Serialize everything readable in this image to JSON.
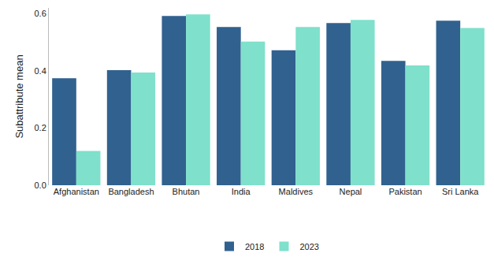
{
  "chart_data": {
    "type": "bar",
    "y_label": "Subattribute mean",
    "categories": [
      "Afghanistan",
      "Bangladesh",
      "Bhutan",
      "India",
      "Maldives",
      "Nepal",
      "Pakistan",
      "Sri Lanka"
    ],
    "series": [
      {
        "name": "2018",
        "color": "#31618f",
        "values": [
          0.374,
          0.402,
          0.592,
          0.553,
          0.472,
          0.567,
          0.435,
          0.575
        ]
      },
      {
        "name": "2023",
        "color": "#7fe0cb",
        "values": [
          0.12,
          0.394,
          0.597,
          0.502,
          0.553,
          0.578,
          0.419,
          0.55
        ]
      }
    ],
    "ylim": [
      0,
      0.62
    ],
    "yticks": [
      {
        "value": 0,
        "label": "0.0"
      },
      0.2,
      0.4,
      0.6
    ],
    "grid": false,
    "legend": "bottom"
  }
}
